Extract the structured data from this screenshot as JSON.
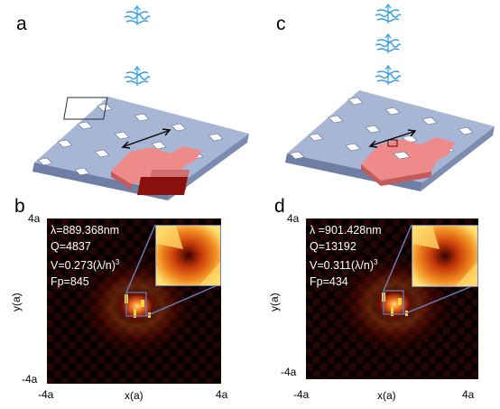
{
  "panels": {
    "a": {
      "letter": "a"
    },
    "b": {
      "letter": "b",
      "wavelength": "λ=889.368nm",
      "q": "Q=4837",
      "v_prefix": "V=0.273(λ/n)",
      "v_exp": "3",
      "fp": "Fp=845",
      "tick_y_top": "4a",
      "tick_y_bottom": "-4a",
      "tick_x_left": "-4a",
      "tick_x_right": "4a",
      "xlabel": "x(a)",
      "ylabel": "y(a)"
    },
    "c": {
      "letter": "c"
    },
    "d": {
      "letter": "d",
      "wavelength": "λ =901.428nm",
      "q": "Q=13192",
      "v_prefix": "V=0.311(λ/n)",
      "v_exp": "3",
      "fp": "Fp=434",
      "tick_y_top": "4a",
      "tick_y_bottom": "-4a",
      "tick_x_left": "-4a",
      "tick_x_right": "4a",
      "xlabel": "x(a)",
      "ylabel": "y(a)"
    }
  },
  "colors": {
    "slab_top": "#a8b6d6",
    "slab_side": "#6e7ea4",
    "cavity": "#ef8a8a",
    "cavity_side": "#c45a5a",
    "cavity_dark": "#8a1010",
    "pulse": "#3aa0e8",
    "inset_border": "#6a80c0",
    "field_hot": "#ffe07a",
    "field_mid": "#d8300c"
  }
}
